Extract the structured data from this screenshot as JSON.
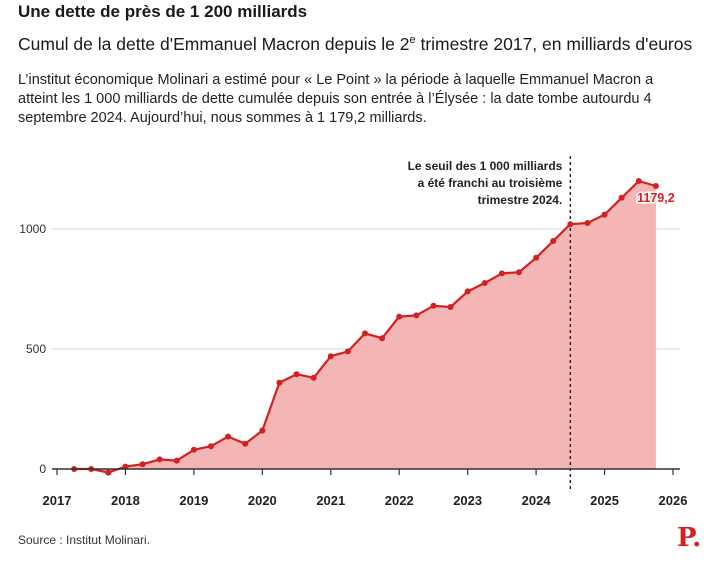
{
  "header": {
    "title": "Une dette de près de 1 200 milliards",
    "subtitle_pre": "Cumul de la dette d'Emmanuel Macron depuis le 2",
    "subtitle_sup": "e",
    "subtitle_post": " trimestre 2017, en milliards d'euros",
    "intro": "L’institut économique Molinari a estimé pour « Le Point » la période à laquelle Emmanuel Macron a atteint les 1 000 milliards de dette cumulée depuis son entrée à l’Élysée : la date tombe autourdu 4 septembre 2024. Aujourd’hui, nous sommes à 1 179,2 milliards."
  },
  "footer": {
    "source": "Source : Institut Molinari.",
    "logo": "P."
  },
  "colors": {
    "line": "#d42020",
    "area": "#f4b5b5",
    "grid": "#d6d6d6",
    "axis": "#333333"
  },
  "chart_data": {
    "type": "area",
    "title": "",
    "xlabel": "",
    "ylabel": "",
    "xlim": [
      2017,
      2026
    ],
    "ylim": [
      -50,
      1300
    ],
    "x_ticks": [
      2017,
      2018,
      2019,
      2020,
      2021,
      2022,
      2023,
      2024,
      2025,
      2026
    ],
    "y_ticks": [
      0,
      500,
      1000
    ],
    "grid": true,
    "series": [
      {
        "x": [
          2017.25,
          2017.5,
          2017.75,
          2018.0,
          2018.25,
          2018.5,
          2018.75,
          2019.0,
          2019.25,
          2019.5,
          2019.75,
          2020.0,
          2020.25,
          2020.5,
          2020.75,
          2021.0,
          2021.25,
          2021.5,
          2021.75,
          2022.0,
          2022.25,
          2022.5,
          2022.75,
          2023.0,
          2023.25,
          2023.5,
          2023.75,
          2024.0,
          2024.25,
          2024.5,
          2024.75,
          2025.0,
          2025.25,
          2025.5,
          2025.75
        ],
        "y": [
          0,
          0,
          -15,
          10,
          20,
          40,
          35,
          80,
          95,
          135,
          105,
          160,
          360,
          395,
          380,
          470,
          490,
          565,
          545,
          635,
          640,
          680,
          675,
          740,
          775,
          815,
          820,
          880,
          950,
          1020,
          1025,
          1060,
          1130,
          1200,
          1179.2
        ]
      }
    ],
    "vline": {
      "x": 2024.5,
      "label_lines": [
        "Le seuil des 1 000 milliards",
        "a été franchi au troisième",
        "trimestre 2024."
      ]
    },
    "end_label": "1179,2"
  }
}
